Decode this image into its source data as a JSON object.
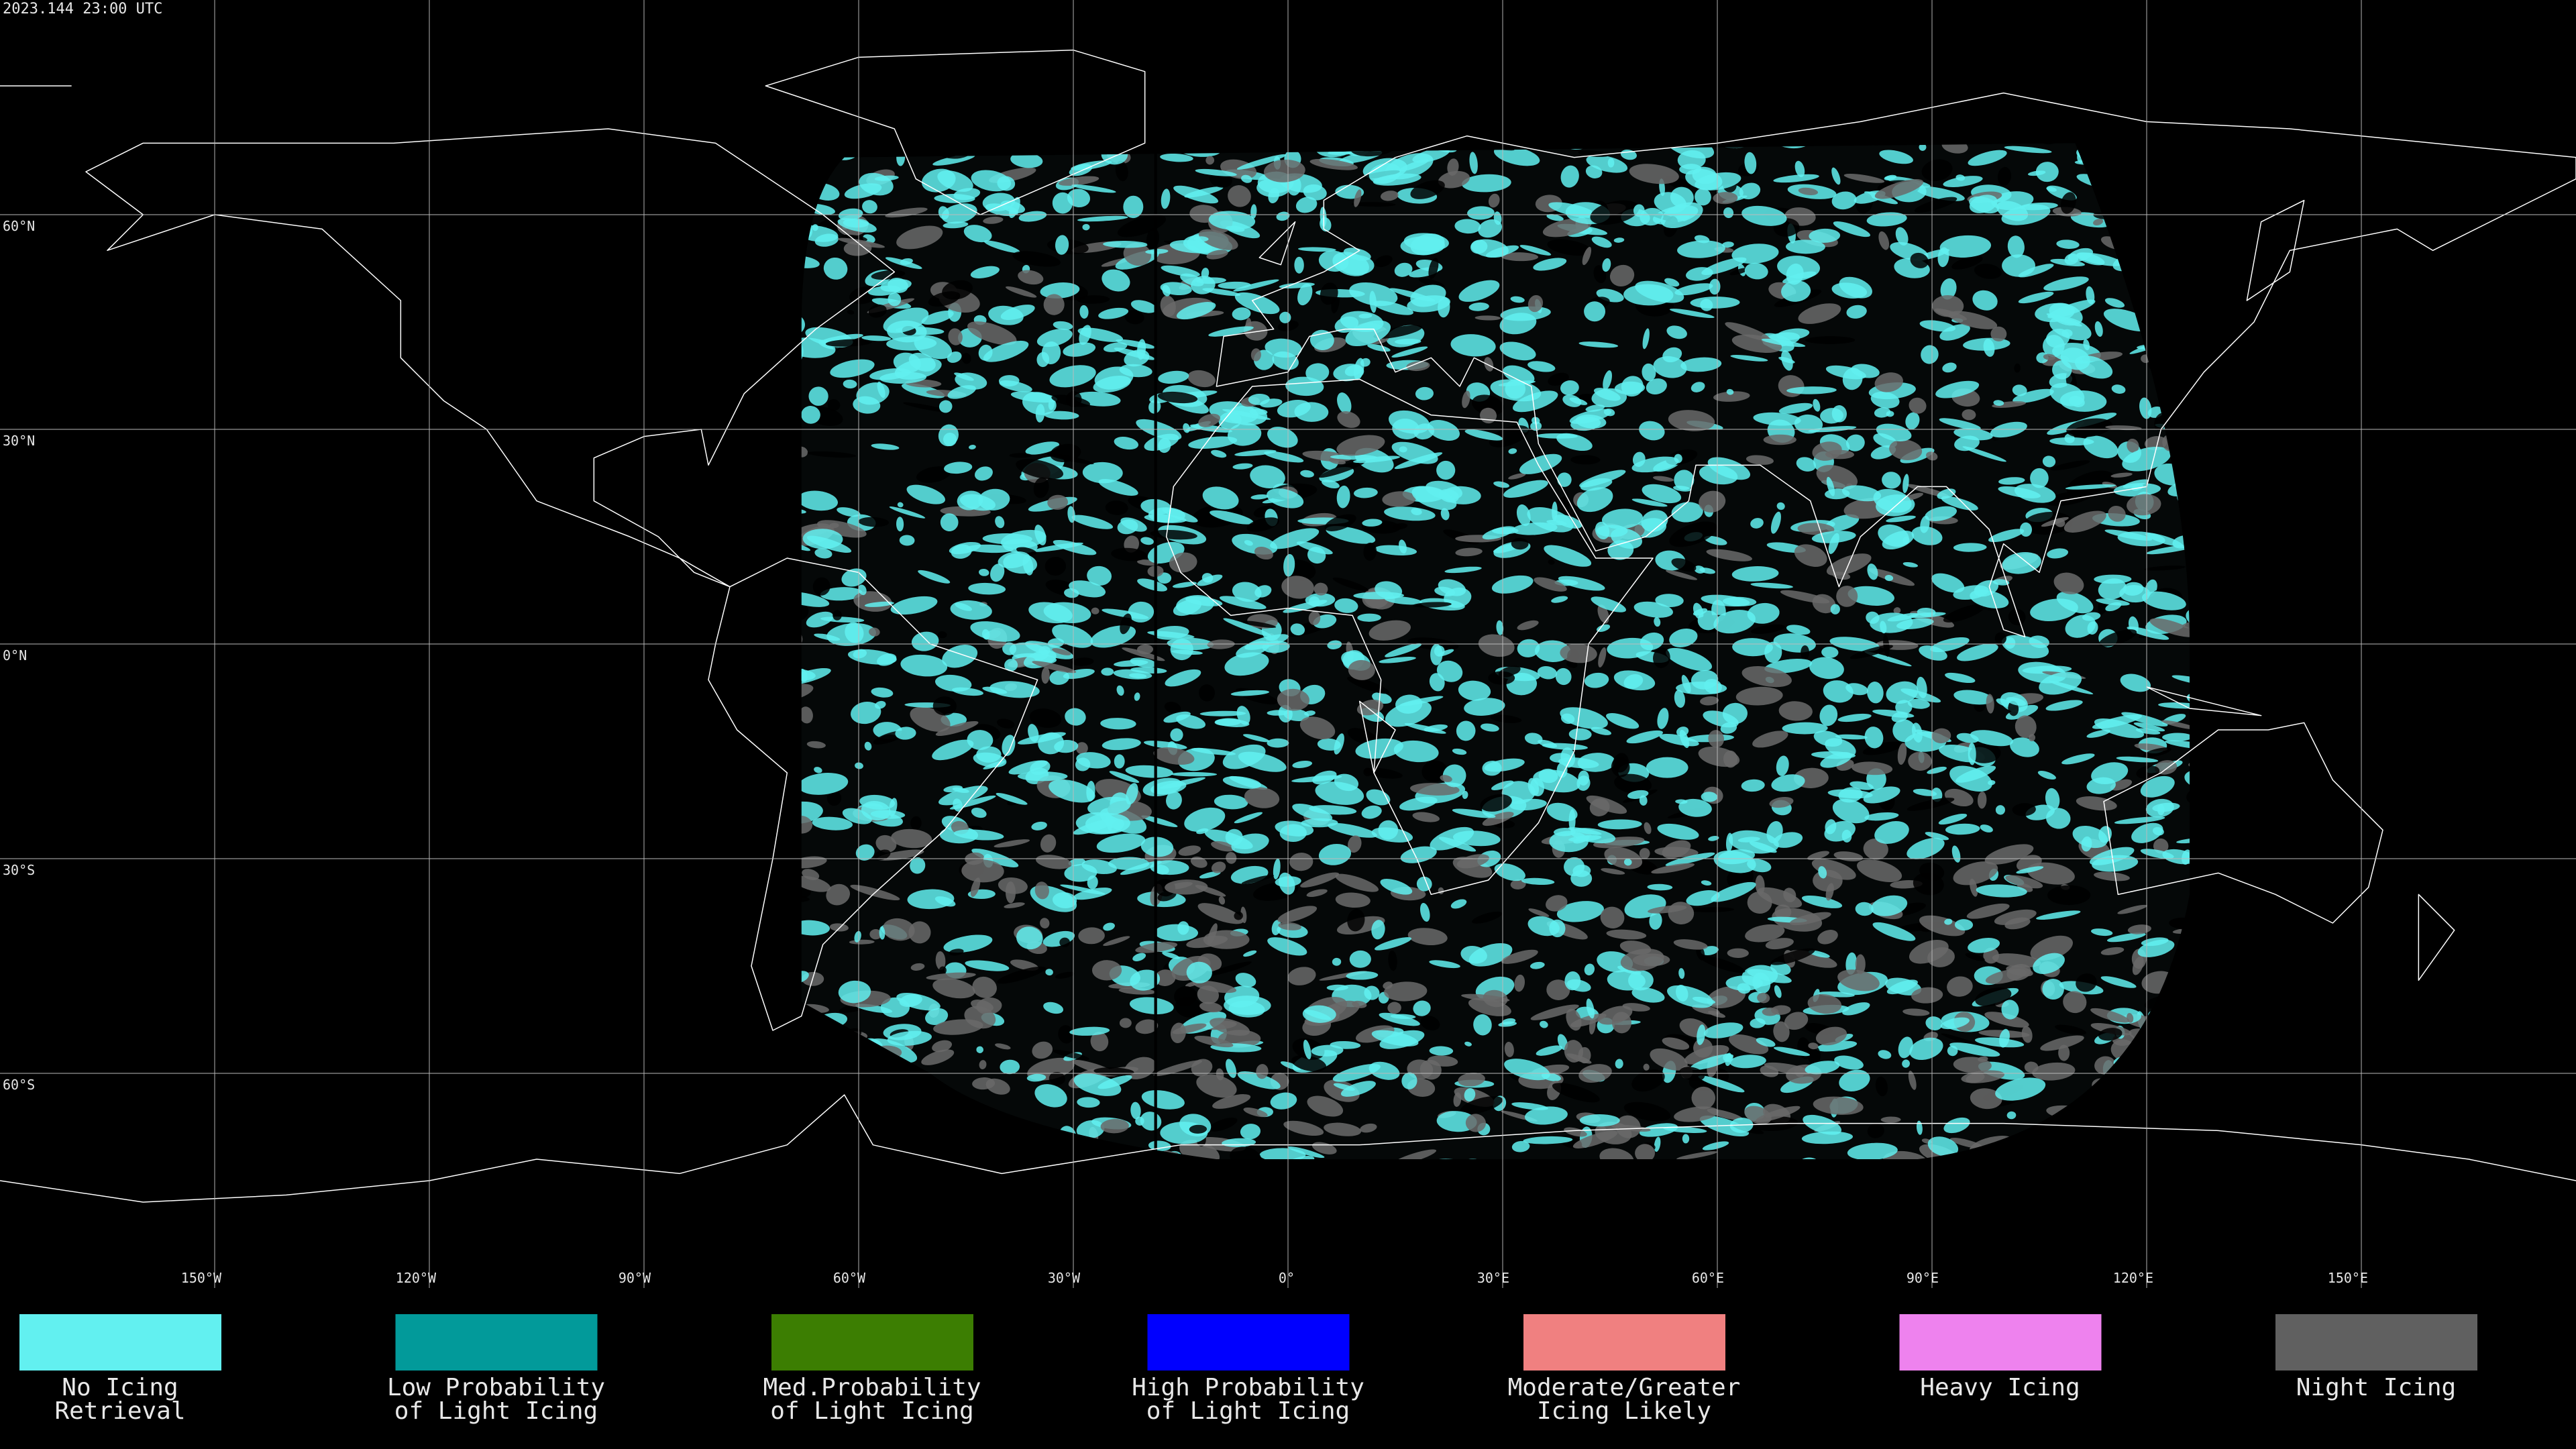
{
  "header": {
    "timestamp": "2023.144 23:00 UTC"
  },
  "lat_grid": [
    {
      "value": 60,
      "label": "60°N"
    },
    {
      "value": 30,
      "label": "30°N"
    },
    {
      "value": 0,
      "label": "0°N"
    },
    {
      "value": -30,
      "label": "30°S"
    },
    {
      "value": -60,
      "label": "60°S"
    }
  ],
  "lon_grid": [
    {
      "value": -150,
      "label": "150°W"
    },
    {
      "value": -120,
      "label": "120°W"
    },
    {
      "value": -90,
      "label": "90°W"
    },
    {
      "value": -60,
      "label": "60°W"
    },
    {
      "value": -30,
      "label": "30°W"
    },
    {
      "value": 0,
      "label": "0°"
    },
    {
      "value": 30,
      "label": "30°E"
    },
    {
      "value": 60,
      "label": "60°E"
    },
    {
      "value": 90,
      "label": "90°E"
    },
    {
      "value": 120,
      "label": "120°E"
    },
    {
      "value": 150,
      "label": "150°E"
    }
  ],
  "legend": {
    "items": [
      {
        "color": "#62f0f0",
        "lines": [
          "No Icing",
          "Retrieval"
        ]
      },
      {
        "color": "#029a9a",
        "lines": [
          "Low Probability",
          "of Light Icing"
        ]
      },
      {
        "color": "#3c7e02",
        "lines": [
          "Med.Probability",
          "of Light Icing"
        ]
      },
      {
        "color": "#0000ff",
        "lines": [
          "High Probability",
          "of Light Icing"
        ]
      },
      {
        "color": "#f08080",
        "lines": [
          "Moderate/Greater",
          "Icing Likely"
        ]
      },
      {
        "color": "#ee82ee",
        "lines": [
          "Heavy Icing"
        ]
      },
      {
        "color": "#606060",
        "lines": [
          "Night Icing"
        ]
      }
    ]
  }
}
